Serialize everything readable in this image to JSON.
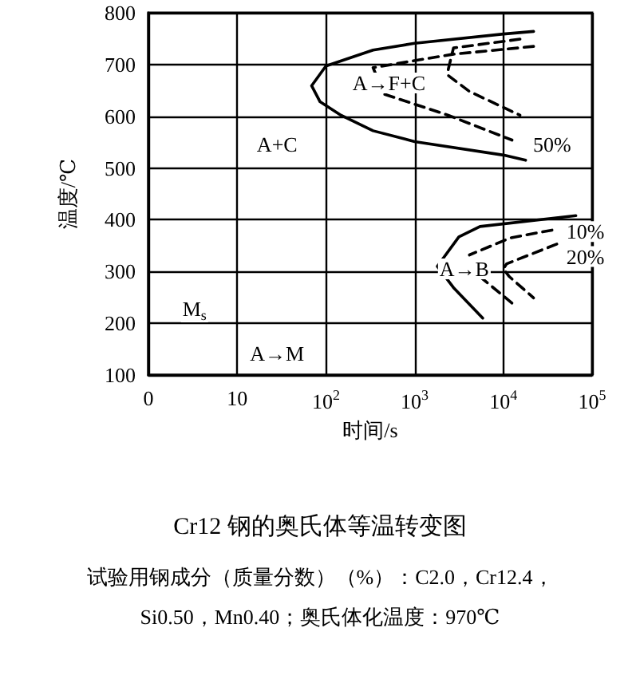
{
  "chart_data": {
    "type": "line",
    "title": "Cr12 钢的奥氏体等温转变图",
    "subtitle": "试验用钢成分（质量分数）（%）：C2.0，Cr12.4，\nSi0.50，Mn0.40；奥氏体化温度：970℃",
    "xlabel": "时间/s",
    "ylabel": "温度/℃",
    "log": "x",
    "xlim": [
      0,
      100000
    ],
    "xticks": [
      0,
      10,
      {
        "value": 100,
        "label": "10$^{2}$"
      },
      {
        "value": 1000,
        "label": "10$^{3}$"
      },
      {
        "value": 10000,
        "label": "10$^{4}$"
      },
      {
        "value": 100000,
        "label": "10$^{5}$"
      }
    ],
    "ylim": [
      100,
      800
    ],
    "yticks": [
      100,
      200,
      300,
      400,
      500,
      600,
      700,
      800
    ],
    "grid": true,
    "marker": "none",
    "series": [
      {
        "color": "#000000",
        "line_style": "solid",
        "x": [
          21900,
          10000,
          1000,
          340,
          100,
          69,
          86,
          148,
          340,
          1000,
          10000,
          17800
        ],
        "values": [
          764,
          759,
          741,
          728,
          697,
          659,
          628,
          602,
          572,
          551,
          525,
          515
        ]
      },
      {
        "color": "#000000",
        "line_style": "dashed",
        "x": [
          21900,
          2740,
          340,
          450,
          2390,
          12500
        ],
        "values": [
          735,
          720,
          694,
          643,
          602,
          554
        ]
      },
      {
        "color": "#000000",
        "line_style": "dashed",
        "x": [
          15400,
          2740,
          2380,
          2380,
          4140,
          15400
        ],
        "values": [
          749,
          732,
          689,
          679,
          648,
          602
        ]
      },
      {
        "color": "#000000",
        "line_style": "solid",
        "x": [
          65600,
          5450,
          3150,
          1800,
          2740,
          5860
        ],
        "values": [
          408,
          387,
          367,
          310,
          269,
          210
        ]
      },
      {
        "color": "#000000",
        "line_style": "dashed",
        "x": [
          35300,
          12000,
          4140,
          4800,
          5450,
          12500
        ],
        "values": [
          380,
          365,
          332,
          null,
          290,
          239
        ]
      },
      {
        "color": "#000000",
        "line_style": "dashed",
        "x": [
          40000,
          10900,
          10000,
          11700,
          21900
        ],
        "values": [
          353,
          315,
          305,
          290,
          249
        ]
      }
    ],
    "annotations": [
      "A→F+C",
      "A+C",
      "50%",
      "10%",
      "20%",
      "A→B",
      "M$_{s}$",
      "A→M"
    ]
  }
}
